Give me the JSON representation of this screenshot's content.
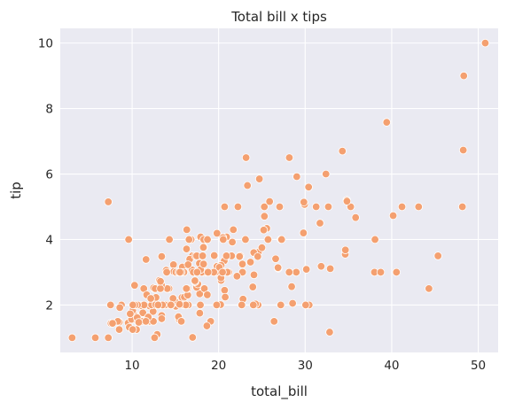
{
  "chart_data": {
    "type": "scatter",
    "title": "Total bill x tips",
    "xlabel": "total_bill",
    "ylabel": "tip",
    "xlim": [
      1.7,
      52.3
    ],
    "ylim": [
      0.55,
      10.45
    ],
    "xticks": [
      10,
      20,
      30,
      40,
      50
    ],
    "yticks": [
      2,
      4,
      6,
      8,
      10
    ],
    "grid": true,
    "colors": {
      "background": "#EAEAF2",
      "grid": "#FFFFFF",
      "marker": "#F4A070",
      "marker_edge": "#FFFFFF"
    },
    "points": [
      [
        16.99,
        1.01
      ],
      [
        10.34,
        1.66
      ],
      [
        21.01,
        3.5
      ],
      [
        23.68,
        3.31
      ],
      [
        24.59,
        3.61
      ],
      [
        25.29,
        4.71
      ],
      [
        8.77,
        2.0
      ],
      [
        26.88,
        3.12
      ],
      [
        15.04,
        1.96
      ],
      [
        14.78,
        3.23
      ],
      [
        10.27,
        1.71
      ],
      [
        35.26,
        5.0
      ],
      [
        15.42,
        1.57
      ],
      [
        18.43,
        3.0
      ],
      [
        14.83,
        3.02
      ],
      [
        21.58,
        3.92
      ],
      [
        10.33,
        1.67
      ],
      [
        16.29,
        3.71
      ],
      [
        16.97,
        3.5
      ],
      [
        20.65,
        3.35
      ],
      [
        17.92,
        4.08
      ],
      [
        20.29,
        2.75
      ],
      [
        15.77,
        2.23
      ],
      [
        39.42,
        7.58
      ],
      [
        19.82,
        3.18
      ],
      [
        17.81,
        2.34
      ],
      [
        13.37,
        2.0
      ],
      [
        12.69,
        2.0
      ],
      [
        21.7,
        4.3
      ],
      [
        19.65,
        3.0
      ],
      [
        9.55,
        1.45
      ],
      [
        18.35,
        2.5
      ],
      [
        15.06,
        3.0
      ],
      [
        20.69,
        2.45
      ],
      [
        17.78,
        3.27
      ],
      [
        24.06,
        3.6
      ],
      [
        16.31,
        2.0
      ],
      [
        16.93,
        3.07
      ],
      [
        18.69,
        2.31
      ],
      [
        31.27,
        5.0
      ],
      [
        16.04,
        2.24
      ],
      [
        17.46,
        2.54
      ],
      [
        13.94,
        3.06
      ],
      [
        9.68,
        1.32
      ],
      [
        30.4,
        5.6
      ],
      [
        18.29,
        3.0
      ],
      [
        22.23,
        5.0
      ],
      [
        32.4,
        6.0
      ],
      [
        28.55,
        2.05
      ],
      [
        18.04,
        3.0
      ],
      [
        12.54,
        2.5
      ],
      [
        10.29,
        2.6
      ],
      [
        34.81,
        5.2
      ],
      [
        9.94,
        1.56
      ],
      [
        25.56,
        4.34
      ],
      [
        19.49,
        3.51
      ],
      [
        38.01,
        3.0
      ],
      [
        26.41,
        1.5
      ],
      [
        11.24,
        1.76
      ],
      [
        48.27,
        6.73
      ],
      [
        20.29,
        3.21
      ],
      [
        13.81,
        2.0
      ],
      [
        11.02,
        1.98
      ],
      [
        18.29,
        3.76
      ],
      [
        17.59,
        2.64
      ],
      [
        20.08,
        3.15
      ],
      [
        16.45,
        2.47
      ],
      [
        3.07,
        1.0
      ],
      [
        20.23,
        2.01
      ],
      [
        15.01,
        2.09
      ],
      [
        12.02,
        1.97
      ],
      [
        17.07,
        3.0
      ],
      [
        26.86,
        3.14
      ],
      [
        25.28,
        5.0
      ],
      [
        14.73,
        2.2
      ],
      [
        10.51,
        1.25
      ],
      [
        17.92,
        3.08
      ],
      [
        27.2,
        4.0
      ],
      [
        22.76,
        3.0
      ],
      [
        17.29,
        2.71
      ],
      [
        19.44,
        3.0
      ],
      [
        16.66,
        3.4
      ],
      [
        10.07,
        1.83
      ],
      [
        32.68,
        5.0
      ],
      [
        15.98,
        2.03
      ],
      [
        34.83,
        5.17
      ],
      [
        13.03,
        2.0
      ],
      [
        18.28,
        4.0
      ],
      [
        24.71,
        5.85
      ],
      [
        21.16,
        3.0
      ],
      [
        28.97,
        3.0
      ],
      [
        22.49,
        3.5
      ],
      [
        5.75,
        1.0
      ],
      [
        16.32,
        4.3
      ],
      [
        22.75,
        3.25
      ],
      [
        40.17,
        4.73
      ],
      [
        27.28,
        4.0
      ],
      [
        12.03,
        1.5
      ],
      [
        21.01,
        3.0
      ],
      [
        12.46,
        1.5
      ],
      [
        11.35,
        2.5
      ],
      [
        15.38,
        3.0
      ],
      [
        44.3,
        2.5
      ],
      [
        22.42,
        3.48
      ],
      [
        20.92,
        4.08
      ],
      [
        15.36,
        1.64
      ],
      [
        20.49,
        4.06
      ],
      [
        25.21,
        4.29
      ],
      [
        18.24,
        3.76
      ],
      [
        14.31,
        4.0
      ],
      [
        14.0,
        3.0
      ],
      [
        7.25,
        1.0
      ],
      [
        38.07,
        4.0
      ],
      [
        23.95,
        2.55
      ],
      [
        25.71,
        4.0
      ],
      [
        17.31,
        3.5
      ],
      [
        29.93,
        5.07
      ],
      [
        10.65,
        1.5
      ],
      [
        12.43,
        1.8
      ],
      [
        24.08,
        2.92
      ],
      [
        11.69,
        2.31
      ],
      [
        13.42,
        1.68
      ],
      [
        14.26,
        2.5
      ],
      [
        15.95,
        2.0
      ],
      [
        12.48,
        2.52
      ],
      [
        29.8,
        4.2
      ],
      [
        8.52,
        1.48
      ],
      [
        14.52,
        2.0
      ],
      [
        11.38,
        2.0
      ],
      [
        22.82,
        2.18
      ],
      [
        19.08,
        1.5
      ],
      [
        20.27,
        2.83
      ],
      [
        11.17,
        1.5
      ],
      [
        12.26,
        2.0
      ],
      [
        18.26,
        3.25
      ],
      [
        8.51,
        1.25
      ],
      [
        10.33,
        2.0
      ],
      [
        14.15,
        2.0
      ],
      [
        16.0,
        2.0
      ],
      [
        13.16,
        2.75
      ],
      [
        17.47,
        3.5
      ],
      [
        34.3,
        6.7
      ],
      [
        41.19,
        5.0
      ],
      [
        27.05,
        5.0
      ],
      [
        16.43,
        2.3
      ],
      [
        8.35,
        1.5
      ],
      [
        18.64,
        1.36
      ],
      [
        11.87,
        1.63
      ],
      [
        9.78,
        1.73
      ],
      [
        7.51,
        2.0
      ],
      [
        14.07,
        2.5
      ],
      [
        13.13,
        2.0
      ],
      [
        17.26,
        2.74
      ],
      [
        24.55,
        2.0
      ],
      [
        19.77,
        2.0
      ],
      [
        29.85,
        5.14
      ],
      [
        48.17,
        5.0
      ],
      [
        25.0,
        3.75
      ],
      [
        13.39,
        2.61
      ],
      [
        16.49,
        2.0
      ],
      [
        21.5,
        3.5
      ],
      [
        12.66,
        2.5
      ],
      [
        16.21,
        2.0
      ],
      [
        13.81,
        2.0
      ],
      [
        17.51,
        3.0
      ],
      [
        24.52,
        3.48
      ],
      [
        20.76,
        2.24
      ],
      [
        31.71,
        4.5
      ],
      [
        10.59,
        1.61
      ],
      [
        10.63,
        2.0
      ],
      [
        50.81,
        10.0
      ],
      [
        15.81,
        3.16
      ],
      [
        7.25,
        5.15
      ],
      [
        31.85,
        3.18
      ],
      [
        16.82,
        4.0
      ],
      [
        32.9,
        3.11
      ],
      [
        17.89,
        2.0
      ],
      [
        14.48,
        2.0
      ],
      [
        9.6,
        4.0
      ],
      [
        34.63,
        3.55
      ],
      [
        34.65,
        3.68
      ],
      [
        23.33,
        5.65
      ],
      [
        45.35,
        3.5
      ],
      [
        23.17,
        6.5
      ],
      [
        40.55,
        3.0
      ],
      [
        20.69,
        5.0
      ],
      [
        20.9,
        3.5
      ],
      [
        30.46,
        2.0
      ],
      [
        18.15,
        3.5
      ],
      [
        23.1,
        4.0
      ],
      [
        15.69,
        1.5
      ],
      [
        19.81,
        4.19
      ],
      [
        28.44,
        2.56
      ],
      [
        15.48,
        2.02
      ],
      [
        16.58,
        4.0
      ],
      [
        7.56,
        1.44
      ],
      [
        10.34,
        2.0
      ],
      [
        43.11,
        5.0
      ],
      [
        13.0,
        2.0
      ],
      [
        13.51,
        2.0
      ],
      [
        18.71,
        4.0
      ],
      [
        12.74,
        2.01
      ],
      [
        13.0,
        2.0
      ],
      [
        16.4,
        2.5
      ],
      [
        20.53,
        4.0
      ],
      [
        16.47,
        3.23
      ],
      [
        26.59,
        3.41
      ],
      [
        38.73,
        3.0
      ],
      [
        24.27,
        2.03
      ],
      [
        12.76,
        2.23
      ],
      [
        30.06,
        2.0
      ],
      [
        25.89,
        5.16
      ],
      [
        48.33,
        9.0
      ],
      [
        13.27,
        2.5
      ],
      [
        28.17,
        6.5
      ],
      [
        12.9,
        1.1
      ],
      [
        28.15,
        3.0
      ],
      [
        11.59,
        1.5
      ],
      [
        7.74,
        1.44
      ],
      [
        30.14,
        3.09
      ],
      [
        12.16,
        2.2
      ],
      [
        13.42,
        3.48
      ],
      [
        8.58,
        1.92
      ],
      [
        15.98,
        3.0
      ],
      [
        13.42,
        1.58
      ],
      [
        16.27,
        2.5
      ],
      [
        10.09,
        2.0
      ],
      [
        20.45,
        3.0
      ],
      [
        13.28,
        2.72
      ],
      [
        22.12,
        2.88
      ],
      [
        24.01,
        2.0
      ],
      [
        15.69,
        3.0
      ],
      [
        11.61,
        3.39
      ],
      [
        10.77,
        1.47
      ],
      [
        15.53,
        3.0
      ],
      [
        10.07,
        1.25
      ],
      [
        12.6,
        1.0
      ],
      [
        32.83,
        1.17
      ],
      [
        35.83,
        4.67
      ],
      [
        29.03,
        5.92
      ],
      [
        27.18,
        2.0
      ],
      [
        22.67,
        2.0
      ],
      [
        17.82,
        1.75
      ],
      [
        18.78,
        3.0
      ]
    ]
  }
}
